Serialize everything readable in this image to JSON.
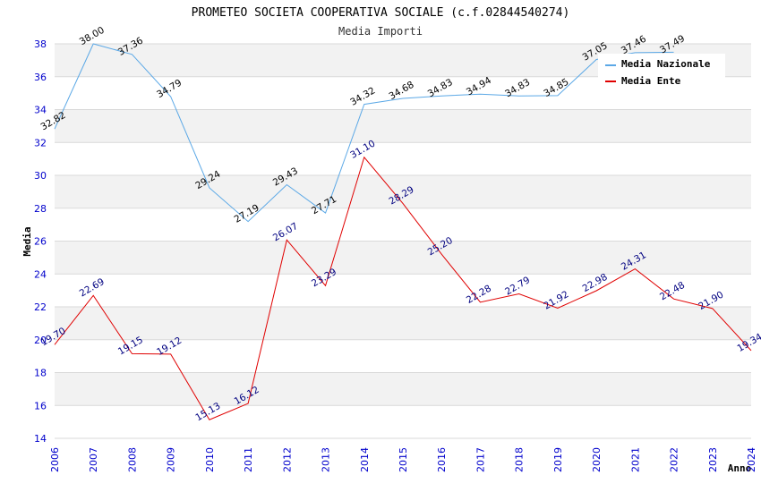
{
  "chart_data": {
    "type": "line",
    "title": "PROMETEO SOCIETA COOPERATIVA SOCIALE (c.f.02844540274)",
    "subtitle": "Media Importi",
    "xlabel": "Anno",
    "ylabel": "Media",
    "categories": [
      "2006",
      "2007",
      "2008",
      "2009",
      "2010",
      "2011",
      "2012",
      "2013",
      "2014",
      "2015",
      "2016",
      "2017",
      "2018",
      "2019",
      "2020",
      "2021",
      "2022",
      "2023",
      "2024"
    ],
    "ylim": [
      14,
      38
    ],
    "yticks": [
      "14",
      "16",
      "18",
      "20",
      "22",
      "24",
      "26",
      "28",
      "30",
      "32",
      "34",
      "36",
      "38"
    ],
    "legend_position": "top-right",
    "series": [
      {
        "name": "Media Nazionale",
        "color": "#5ba8e6",
        "values": [
          32.82,
          38.0,
          37.36,
          34.79,
          29.24,
          27.19,
          29.43,
          27.71,
          34.32,
          34.68,
          34.83,
          34.94,
          34.83,
          34.85,
          37.05,
          37.46,
          37.49,
          null,
          null
        ],
        "labels": [
          "32.82",
          "38.00",
          "37.36",
          "34.79",
          "29.24",
          "27.19",
          "29.43",
          "27.71",
          "34.32",
          "34.68",
          "34.83",
          "34.94",
          "34.83",
          "34.85",
          "37.05",
          "37.46",
          "37.49",
          "",
          ""
        ]
      },
      {
        "name": "Media Ente",
        "color": "#e00000",
        "values": [
          19.7,
          22.69,
          19.15,
          19.12,
          15.13,
          16.12,
          26.07,
          23.29,
          31.1,
          28.29,
          25.2,
          22.28,
          22.79,
          21.92,
          22.98,
          24.31,
          22.48,
          21.9,
          19.34
        ],
        "labels": [
          "19.70",
          "22.69",
          "19.15",
          "19.12",
          "15.13",
          "16.12",
          "26.07",
          "23.29",
          "31.10",
          "28.29",
          "25.20",
          "22.28",
          "22.79",
          "21.92",
          "22.98",
          "24.31",
          "22.48",
          "21.90",
          "19.34"
        ]
      }
    ]
  },
  "colors": {
    "band": "#f2f2f2",
    "grid": "#d9d9d9",
    "tick_text": "#0000cc"
  }
}
